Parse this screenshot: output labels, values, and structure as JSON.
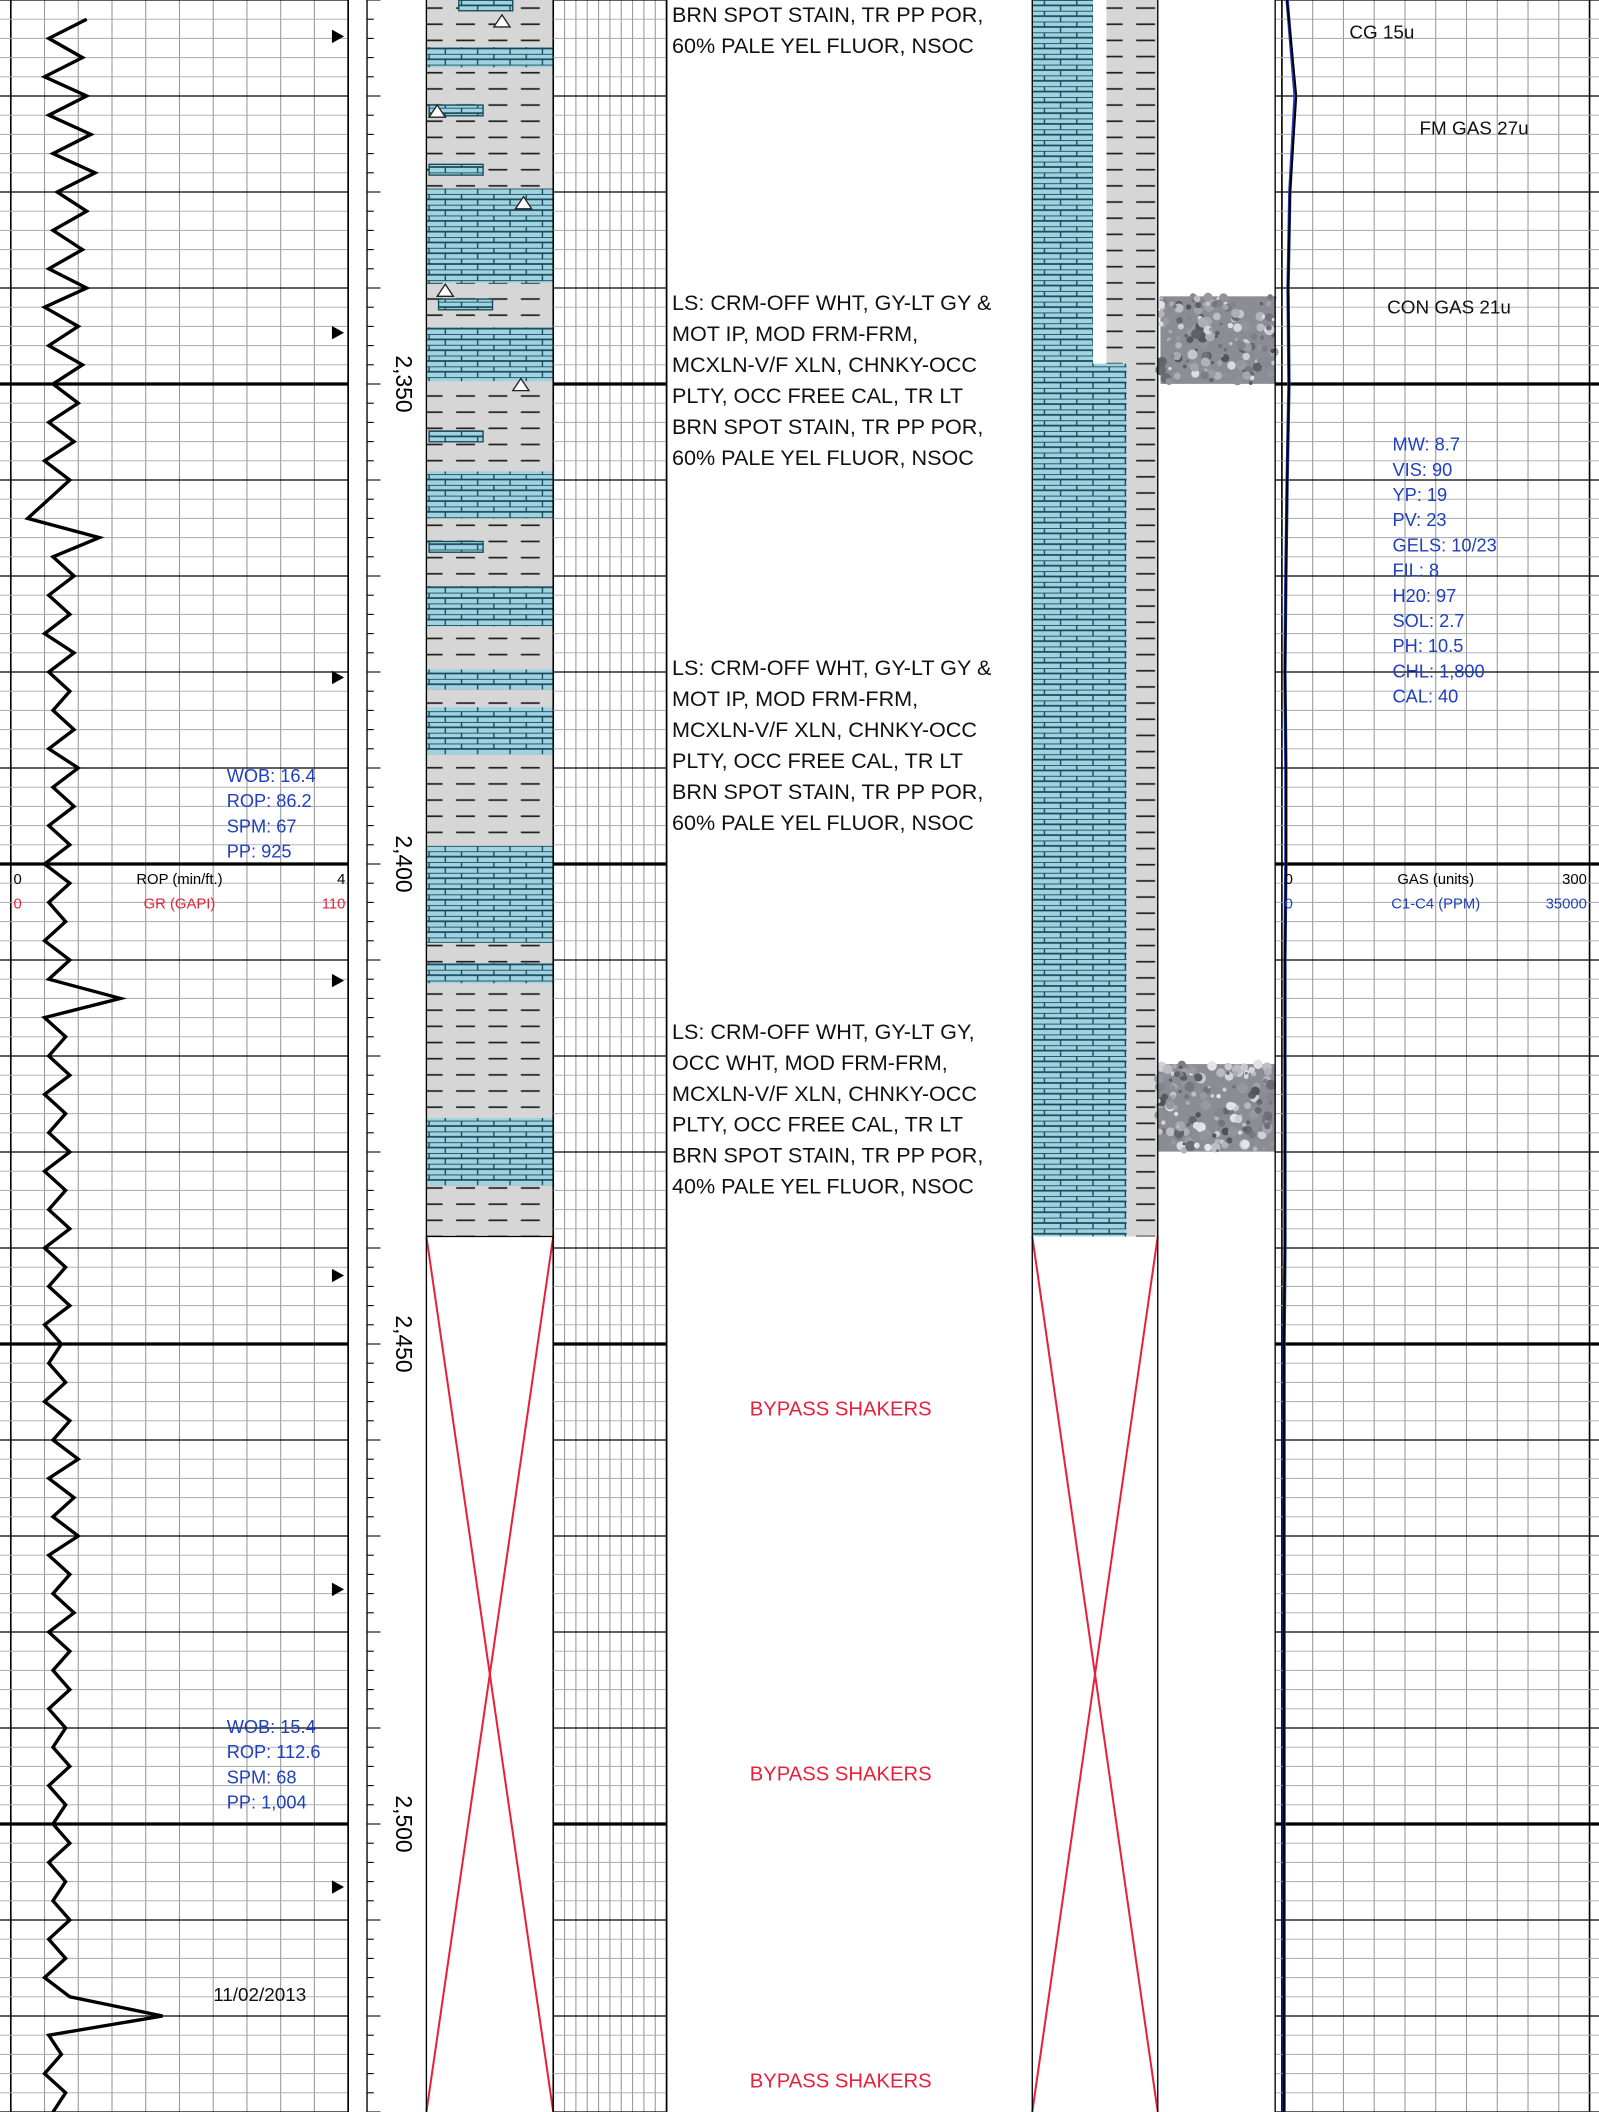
{
  "chart_data": {
    "type": "mudlog",
    "ylim": [
      2310,
      2530
    ],
    "depth_ticks": [
      {
        "value": 2350,
        "label": "2,350"
      },
      {
        "value": 2400,
        "label": "2,400"
      },
      {
        "value": 2450,
        "label": "2,450"
      },
      {
        "value": 2500,
        "label": "2,500"
      }
    ],
    "rop": {
      "name": "ROP (min/ft.)",
      "color": "#000000",
      "xlim": [
        0,
        4
      ],
      "depths": [
        2312,
        2314,
        2316,
        2318,
        2320,
        2322,
        2324,
        2326,
        2328,
        2330,
        2332,
        2334,
        2336,
        2338,
        2340,
        2342,
        2344,
        2346,
        2348,
        2350,
        2352,
        2354,
        2356,
        2358,
        2360,
        2362,
        2364,
        2366,
        2368,
        2370,
        2372,
        2374,
        2376,
        2378,
        2380,
        2382,
        2384,
        2386,
        2388,
        2390,
        2392,
        2394,
        2396,
        2398,
        2400,
        2402,
        2404,
        2406,
        2408,
        2410,
        2412,
        2414,
        2416,
        2418,
        2420,
        2422,
        2424,
        2426,
        2428,
        2430,
        2432,
        2434,
        2436,
        2438,
        2440,
        2442,
        2444,
        2446,
        2448,
        2450,
        2452,
        2454,
        2456,
        2458,
        2460,
        2462,
        2464,
        2466,
        2468,
        2470,
        2472,
        2474,
        2476,
        2478,
        2480,
        2482,
        2484,
        2486,
        2488,
        2490,
        2492,
        2494,
        2496,
        2498,
        2500,
        2502,
        2504,
        2506,
        2508,
        2510,
        2512,
        2514,
        2516,
        2518,
        2520,
        2522,
        2524,
        2526,
        2528,
        2530
      ],
      "values": [
        0.9,
        0.45,
        0.85,
        0.4,
        0.9,
        0.45,
        0.95,
        0.5,
        1.0,
        0.55,
        0.9,
        0.5,
        0.85,
        0.45,
        0.9,
        0.4,
        0.8,
        0.45,
        0.85,
        0.5,
        0.8,
        0.45,
        0.75,
        0.4,
        0.7,
        0.45,
        0.2,
        1.05,
        0.5,
        0.75,
        0.45,
        0.7,
        0.4,
        0.75,
        0.45,
        0.7,
        0.5,
        0.75,
        0.45,
        0.8,
        0.5,
        0.75,
        0.45,
        0.7,
        0.4,
        0.7,
        0.45,
        0.65,
        0.4,
        0.7,
        0.45,
        1.3,
        0.4,
        0.65,
        0.45,
        0.7,
        0.4,
        0.65,
        0.45,
        0.7,
        0.4,
        0.65,
        0.45,
        0.7,
        0.4,
        0.65,
        0.45,
        0.7,
        0.4,
        0.6,
        0.45,
        0.65,
        0.4,
        0.7,
        0.5,
        0.8,
        0.45,
        0.75,
        0.5,
        0.8,
        0.45,
        0.7,
        0.5,
        0.75,
        0.45,
        0.7,
        0.5,
        0.7,
        0.45,
        0.65,
        0.5,
        0.7,
        0.45,
        0.65,
        0.5,
        0.7,
        0.45,
        0.65,
        0.5,
        0.7,
        0.45,
        0.65,
        0.4,
        0.7,
        1.8,
        0.45,
        0.6,
        0.4,
        0.65,
        0.5
      ]
    },
    "gr": {
      "name": "GR (GAPI)",
      "color": "#e8213a",
      "xlim": [
        0,
        110
      ]
    },
    "gas": {
      "name": "GAS (units)",
      "color": "#000000",
      "xlim": [
        0,
        300
      ],
      "depths": [
        2310,
        2320,
        2330,
        2340,
        2350,
        2360,
        2370,
        2380,
        2390,
        2400,
        2410,
        2420,
        2430,
        2440,
        2450,
        2460,
        2470,
        2480,
        2490,
        2500,
        2510,
        2520,
        2530
      ],
      "values": [
        5,
        14,
        8,
        6,
        7,
        5,
        4,
        3,
        4,
        4,
        3,
        3,
        3,
        3,
        2,
        2,
        2,
        2,
        2,
        2,
        2,
        2,
        2
      ]
    },
    "c1c4": {
      "name": "C1-C4 (PPM)",
      "color": "#1f3fbf",
      "xlim": [
        0,
        35000
      ],
      "depths": [
        2310,
        2320,
        2330,
        2340,
        2350,
        2360,
        2370,
        2380,
        2390,
        2400,
        2410,
        2420,
        2430,
        2440,
        2450,
        2460,
        2470,
        2480,
        2490,
        2500,
        2510,
        2520,
        2530
      ],
      "values": [
        600,
        1500,
        900,
        700,
        800,
        600,
        450,
        350,
        450,
        450,
        350,
        350,
        350,
        350,
        250,
        250,
        250,
        250,
        250,
        250,
        250,
        250,
        250
      ]
    },
    "descriptions": [
      [
        "BRN SPOT STAIN, TR PP POR,",
        "60% PALE YEL FLUOR, NSOC"
      ],
      [
        "LS: CRM-OFF WHT, GY-LT GY &",
        "MOT IP, MOD FRM-FRM,",
        "MCXLN-V/F XLN, CHNKY-OCC",
        "PLTY, OCC FREE CAL, TR LT",
        "BRN SPOT STAIN, TR PP POR,",
        "60% PALE YEL FLUOR, NSOC"
      ],
      [
        "LS: CRM-OFF WHT, GY-LT GY &",
        "MOT IP, MOD FRM-FRM,",
        "MCXLN-V/F XLN, CHNKY-OCC",
        "PLTY, OCC FREE CAL, TR LT",
        "BRN SPOT STAIN, TR PP POR,",
        "60% PALE YEL FLUOR, NSOC"
      ],
      [
        "LS: CRM-OFF WHT, GY-LT GY,",
        "OCC WHT,  MOD FRM-FRM,",
        "MCXLN-V/F XLN, CHNKY-OCC",
        "PLTY, OCC FREE CAL, TR LT",
        "BRN SPOT STAIN, TR PP POR,",
        "40% PALE YEL FLUOR, NSOC"
      ]
    ],
    "bypass": [
      "BYPASS SHAKERS",
      "BYPASS SHAKERS",
      "BYPASS SHAKERS"
    ],
    "drilling": [
      [
        "WOB: 16.4",
        "ROP: 86.2",
        "SPM: 67",
        "PP: 925"
      ],
      [
        "WOB: 15.4",
        "ROP: 112.6",
        "SPM: 68",
        "PP: 1,004"
      ]
    ],
    "date": "11/02/2013",
    "gas_notes": [
      "CG 15u",
      "FM GAS 27u",
      "CON GAS 21u"
    ],
    "mud": [
      "MW: 8.7",
      "VIS: 90",
      "YP: 19",
      "PV: 23",
      "GELS: 10/23",
      "FIL: 8",
      "H20: 97",
      "SOL: 2.7",
      "PH: 10.5",
      "CHL: 1,800",
      "CAL: 40"
    ]
  }
}
